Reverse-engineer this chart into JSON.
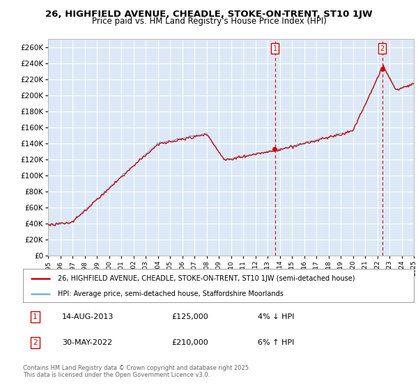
{
  "title": "26, HIGHFIELD AVENUE, CHEADLE, STOKE-ON-TRENT, ST10 1JW",
  "subtitle": "Price paid vs. HM Land Registry's House Price Index (HPI)",
  "ylim": [
    0,
    270000
  ],
  "yticks": [
    0,
    20000,
    40000,
    60000,
    80000,
    100000,
    120000,
    140000,
    160000,
    180000,
    200000,
    220000,
    240000,
    260000
  ],
  "ytick_labels": [
    "£0",
    "£20K",
    "£40K",
    "£60K",
    "£80K",
    "£100K",
    "£120K",
    "£140K",
    "£160K",
    "£180K",
    "£200K",
    "£220K",
    "£240K",
    "£260K"
  ],
  "background_color": "#ffffff",
  "plot_bg_color": "#dce8f5",
  "grid_color": "#ffffff",
  "line1_color": "#cc0000",
  "line2_color": "#7ab0d4",
  "marker1_year": 2013.62,
  "marker1_value": 125000,
  "marker1_label": "1",
  "marker2_year": 2022.41,
  "marker2_value": 210000,
  "marker2_label": "2",
  "legend_line1": "26, HIGHFIELD AVENUE, CHEADLE, STOKE-ON-TRENT, ST10 1JW (semi-detached house)",
  "legend_line2": "HPI: Average price, semi-detached house, Staffordshire Moorlands",
  "annotation1_num": "1",
  "annotation1_date": "14-AUG-2013",
  "annotation1_price": "£125,000",
  "annotation1_hpi": "4% ↓ HPI",
  "annotation2_num": "2",
  "annotation2_date": "30-MAY-2022",
  "annotation2_price": "£210,000",
  "annotation2_hpi": "6% ↑ HPI",
  "copyright_text": "Contains HM Land Registry data © Crown copyright and database right 2025.\nThis data is licensed under the Open Government Licence v3.0.",
  "xmin": 1995,
  "xmax": 2025
}
